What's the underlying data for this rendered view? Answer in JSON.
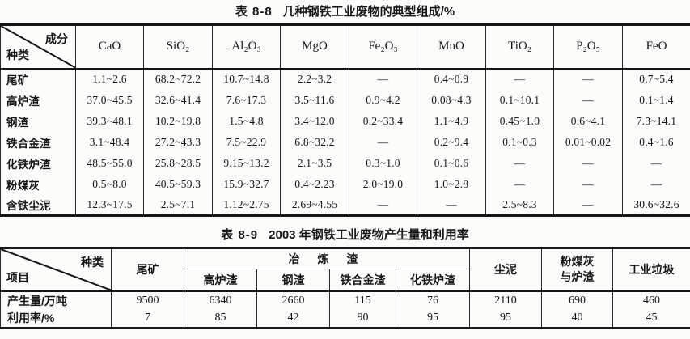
{
  "page": {
    "background": "#fcfcfa",
    "ink": "#161616"
  },
  "table1": {
    "title_tag": "表 8-8",
    "title_text": "几种钢铁工业废物的典型组成/%",
    "corner": {
      "top_right": "成分",
      "bottom_left": "种类"
    },
    "columns": [
      "CaO",
      "SiO₂",
      "Al₂O₃",
      "MgO",
      "Fe₂O₃",
      "MnO",
      "TiO₂",
      "P₂O₅",
      "FeO"
    ],
    "rows": [
      {
        "label": "尾矿",
        "values": [
          "1.1~2.6",
          "68.2~72.2",
          "10.7~14.8",
          "2.2~3.2",
          "—",
          "0.4~0.9",
          "—",
          "—",
          "0.7~5.4"
        ]
      },
      {
        "label": "高炉渣",
        "values": [
          "37.0~45.5",
          "32.6~41.4",
          "7.6~17.3",
          "3.5~11.6",
          "0.9~4.2",
          "0.08~4.3",
          "0.1~10.1",
          "—",
          "0.1~1.4"
        ]
      },
      {
        "label": "钢渣",
        "values": [
          "39.3~48.1",
          "10.2~19.8",
          "1.5~4.8",
          "3.4~12.0",
          "0.2~33.4",
          "1.1~4.9",
          "0.45~1.0",
          "0.6~4.1",
          "7.3~14.1"
        ]
      },
      {
        "label": "铁合金渣",
        "values": [
          "3.1~48.4",
          "27.2~43.3",
          "7.5~22.9",
          "6.8~32.2",
          "—",
          "0.2~9.4",
          "0.1~0.3",
          "0.01~0.02",
          "0.4~1.6"
        ]
      },
      {
        "label": "化铁炉渣",
        "values": [
          "48.5~55.0",
          "25.8~28.5",
          "9.15~13.2",
          "2.1~3.5",
          "0.3~1.0",
          "0.1~0.6",
          "—",
          "—",
          "—"
        ]
      },
      {
        "label": "粉煤灰",
        "values": [
          "0.5~8.0",
          "40.5~59.3",
          "15.9~32.7",
          "0.4~2.23",
          "2.0~19.0",
          "1.0~2.8",
          "—",
          "—",
          "—"
        ]
      },
      {
        "label": "含铁尘泥",
        "values": [
          "12.3~17.5",
          "2.5~7.1",
          "1.12~2.75",
          "2.69~4.55",
          "—",
          "—",
          "2.5~8.3",
          "—",
          "30.6~32.6"
        ]
      }
    ]
  },
  "table2": {
    "title_tag": "表 8-9",
    "title_text": "2003 年钢铁工业废物产生量和利用率",
    "corner": {
      "top_right": "种类",
      "bottom_left": "项目"
    },
    "col_tailings": "尾矿",
    "smelting_group": "冶 炼 渣",
    "smelting_columns": [
      "高炉渣",
      "钢渣",
      "铁合金渣",
      "化铁炉渣"
    ],
    "col_dust_sludge": "尘泥",
    "col_flyash_line1": "粉煤灰",
    "col_flyash_line2": "与炉渣",
    "col_industrial_waste": "工业垃圾",
    "rows": [
      {
        "label": "产生量/万吨",
        "values": [
          "9500",
          "6340",
          "2660",
          "115",
          "76",
          "2110",
          "690",
          "460"
        ]
      },
      {
        "label": "利用率/%",
        "values": [
          "7",
          "85",
          "42",
          "90",
          "95",
          "95",
          "40",
          "45"
        ]
      }
    ]
  }
}
